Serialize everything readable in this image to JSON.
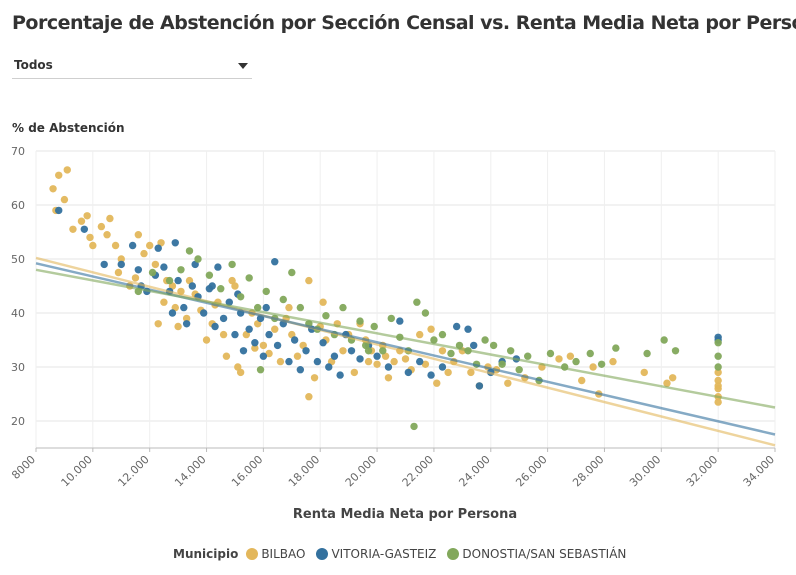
{
  "title": "Porcentaje de Abstención por Sección Censal vs. Renta Media Neta por Persona",
  "filter": {
    "selected": "Todos"
  },
  "legend": {
    "title": "Municipio",
    "items": [
      {
        "label": "BILBAO",
        "color": "#e3b75b"
      },
      {
        "label": "VITORIA-GASTEIZ",
        "color": "#33719e"
      },
      {
        "label": "DONOSTIA/SAN SEBASTIÁN",
        "color": "#82a85b"
      }
    ]
  },
  "chart_data": {
    "type": "scatter",
    "title": "Porcentaje de Abstención por Sección Censal vs. Renta Media Neta por Persona",
    "xlabel": "Renta Media Neta por Persona",
    "ylabel": "% de Abstención",
    "xlim": [
      8000,
      34000
    ],
    "ylim": [
      15,
      70
    ],
    "x_ticks": [
      8000,
      10000,
      12000,
      14000,
      16000,
      18000,
      20000,
      22000,
      24000,
      26000,
      28000,
      30000,
      32000,
      34000
    ],
    "x_tick_labels": [
      "8000",
      "10.000",
      "12.000",
      "14.000",
      "16.000",
      "18.000",
      "20.000",
      "22.000",
      "24.000",
      "26.000",
      "28.000",
      "30.000",
      "32.000",
      "34.000"
    ],
    "y_ticks": [
      20,
      30,
      40,
      50,
      60,
      70
    ],
    "grid": true,
    "legend_position": "bottom",
    "series": [
      {
        "name": "BILBAO",
        "color": "#e3b75b",
        "points": [
          [
            8600,
            63
          ],
          [
            8800,
            65.5
          ],
          [
            9100,
            66.5
          ],
          [
            8700,
            59
          ],
          [
            9000,
            61
          ],
          [
            9300,
            55.5
          ],
          [
            9600,
            57
          ],
          [
            9800,
            58
          ],
          [
            9900,
            54
          ],
          [
            10000,
            52.5
          ],
          [
            10300,
            56
          ],
          [
            10500,
            54.5
          ],
          [
            10600,
            57.5
          ],
          [
            10800,
            52.5
          ],
          [
            11000,
            50
          ],
          [
            10900,
            47.5
          ],
          [
            11300,
            45
          ],
          [
            11500,
            46.5
          ],
          [
            11600,
            54.5
          ],
          [
            11800,
            51
          ],
          [
            12000,
            52.5
          ],
          [
            12200,
            49
          ],
          [
            12400,
            53
          ],
          [
            12600,
            46
          ],
          [
            12800,
            45
          ],
          [
            12500,
            42
          ],
          [
            12900,
            41
          ],
          [
            13100,
            44
          ],
          [
            13300,
            39
          ],
          [
            13400,
            46
          ],
          [
            13600,
            43.5
          ],
          [
            13800,
            40.5
          ],
          [
            14000,
            35
          ],
          [
            14200,
            38
          ],
          [
            14400,
            42
          ],
          [
            14600,
            36
          ],
          [
            14700,
            32
          ],
          [
            14900,
            46
          ],
          [
            15100,
            30
          ],
          [
            15200,
            29
          ],
          [
            15400,
            36
          ],
          [
            15600,
            40
          ],
          [
            15800,
            38
          ],
          [
            16000,
            34
          ],
          [
            16200,
            32.5
          ],
          [
            16400,
            37
          ],
          [
            16600,
            31
          ],
          [
            16800,
            39
          ],
          [
            17000,
            36
          ],
          [
            17200,
            32
          ],
          [
            17400,
            34
          ],
          [
            17600,
            46
          ],
          [
            17800,
            28
          ],
          [
            18000,
            37.5
          ],
          [
            18200,
            35
          ],
          [
            18400,
            31
          ],
          [
            18600,
            38
          ],
          [
            18800,
            33
          ],
          [
            19000,
            36
          ],
          [
            19200,
            29
          ],
          [
            19400,
            38
          ],
          [
            19600,
            35
          ],
          [
            19800,
            33
          ],
          [
            20000,
            30.5
          ],
          [
            20200,
            34
          ],
          [
            20400,
            28
          ],
          [
            20600,
            31
          ],
          [
            20800,
            33
          ],
          [
            21000,
            31.5
          ],
          [
            21200,
            29.5
          ],
          [
            21500,
            36
          ],
          [
            21700,
            30.5
          ],
          [
            21900,
            37
          ],
          [
            22100,
            27
          ],
          [
            22300,
            33
          ],
          [
            22500,
            29
          ],
          [
            22700,
            31
          ],
          [
            23000,
            33
          ],
          [
            23300,
            29
          ],
          [
            23600,
            26.5
          ],
          [
            23900,
            30
          ],
          [
            24200,
            29.5
          ],
          [
            24600,
            27
          ],
          [
            25200,
            28
          ],
          [
            25800,
            30
          ],
          [
            26400,
            31.5
          ],
          [
            26800,
            32
          ],
          [
            27200,
            27.5
          ],
          [
            27600,
            30
          ],
          [
            27800,
            25
          ],
          [
            28300,
            31
          ],
          [
            29400,
            29
          ],
          [
            30200,
            27
          ],
          [
            30400,
            28
          ],
          [
            32000,
            29
          ],
          [
            32000,
            27.5
          ],
          [
            32000,
            26
          ],
          [
            32000,
            24.5
          ],
          [
            32000,
            26.5
          ],
          [
            32000,
            23.5
          ],
          [
            17600,
            24.5
          ],
          [
            12300,
            38
          ],
          [
            13000,
            37.5
          ],
          [
            14300,
            41.5
          ],
          [
            15700,
            33.5
          ],
          [
            16900,
            41
          ],
          [
            18100,
            42
          ],
          [
            19700,
            31
          ],
          [
            20300,
            32
          ],
          [
            15000,
            45
          ]
        ],
        "trendline": [
          [
            8000,
            50.2
          ],
          [
            34000,
            15.5
          ]
        ]
      },
      {
        "name": "VITORIA-GASTEIZ",
        "color": "#33719e",
        "points": [
          [
            8800,
            59
          ],
          [
            9700,
            55.5
          ],
          [
            10400,
            49
          ],
          [
            11000,
            49
          ],
          [
            11400,
            52.5
          ],
          [
            11600,
            48
          ],
          [
            11700,
            45
          ],
          [
            11900,
            44
          ],
          [
            12200,
            47
          ],
          [
            12300,
            52
          ],
          [
            12500,
            48.5
          ],
          [
            12700,
            44
          ],
          [
            12900,
            53
          ],
          [
            13000,
            46
          ],
          [
            13200,
            41
          ],
          [
            13300,
            38
          ],
          [
            13500,
            45
          ],
          [
            13700,
            43
          ],
          [
            13900,
            40
          ],
          [
            14100,
            44.5
          ],
          [
            14300,
            37.5
          ],
          [
            14400,
            48.5
          ],
          [
            14600,
            39
          ],
          [
            14800,
            42
          ],
          [
            15000,
            36
          ],
          [
            15200,
            40
          ],
          [
            15300,
            33
          ],
          [
            15500,
            37
          ],
          [
            15700,
            34.5
          ],
          [
            15900,
            39
          ],
          [
            16000,
            32
          ],
          [
            16200,
            36
          ],
          [
            16400,
            49.5
          ],
          [
            16500,
            34
          ],
          [
            16700,
            38
          ],
          [
            16900,
            31
          ],
          [
            17100,
            35
          ],
          [
            17300,
            29.5
          ],
          [
            17500,
            33
          ],
          [
            17700,
            37
          ],
          [
            17900,
            31
          ],
          [
            18100,
            34.5
          ],
          [
            18300,
            30
          ],
          [
            18500,
            32
          ],
          [
            18700,
            28.5
          ],
          [
            18900,
            36
          ],
          [
            19100,
            33
          ],
          [
            19400,
            31.5
          ],
          [
            19700,
            34
          ],
          [
            20000,
            32
          ],
          [
            20400,
            30
          ],
          [
            20800,
            38.5
          ],
          [
            21100,
            29
          ],
          [
            21500,
            31
          ],
          [
            21900,
            28.5
          ],
          [
            22300,
            30
          ],
          [
            22800,
            37.5
          ],
          [
            23200,
            37
          ],
          [
            23400,
            34
          ],
          [
            23600,
            26.5
          ],
          [
            24000,
            29
          ],
          [
            24400,
            31
          ],
          [
            24900,
            31.5
          ],
          [
            32000,
            35.5
          ],
          [
            32000,
            35
          ],
          [
            13600,
            49
          ],
          [
            14200,
            45
          ],
          [
            15100,
            43.5
          ],
          [
            16100,
            41
          ],
          [
            12800,
            40
          ]
        ],
        "trendline": [
          [
            8000,
            49.2
          ],
          [
            34000,
            17.5
          ]
        ]
      },
      {
        "name": "DONOSTIA/SAN SEBASTIÁN",
        "color": "#82a85b",
        "points": [
          [
            11600,
            44
          ],
          [
            12100,
            47.5
          ],
          [
            12700,
            46
          ],
          [
            13100,
            48
          ],
          [
            13400,
            51.5
          ],
          [
            13700,
            50
          ],
          [
            14100,
            47
          ],
          [
            14500,
            44.5
          ],
          [
            14900,
            49
          ],
          [
            15200,
            43
          ],
          [
            15500,
            46.5
          ],
          [
            15800,
            41
          ],
          [
            16100,
            44
          ],
          [
            16400,
            39
          ],
          [
            16700,
            42.5
          ],
          [
            17000,
            47.5
          ],
          [
            17300,
            41
          ],
          [
            17600,
            38
          ],
          [
            17900,
            37
          ],
          [
            18200,
            39.5
          ],
          [
            18500,
            36
          ],
          [
            18800,
            41
          ],
          [
            19100,
            35
          ],
          [
            19400,
            38.5
          ],
          [
            19600,
            34
          ],
          [
            19900,
            37.5
          ],
          [
            20200,
            33
          ],
          [
            20500,
            39
          ],
          [
            20800,
            35.5
          ],
          [
            21100,
            33
          ],
          [
            21400,
            42
          ],
          [
            21700,
            40
          ],
          [
            22000,
            35
          ],
          [
            22300,
            36
          ],
          [
            22600,
            32.5
          ],
          [
            22900,
            34
          ],
          [
            23200,
            33
          ],
          [
            23500,
            30.5
          ],
          [
            23800,
            35
          ],
          [
            24100,
            34
          ],
          [
            24400,
            30.5
          ],
          [
            24700,
            33
          ],
          [
            25000,
            29.5
          ],
          [
            25300,
            32
          ],
          [
            25700,
            27.5
          ],
          [
            26100,
            32.5
          ],
          [
            26600,
            30
          ],
          [
            27000,
            31
          ],
          [
            27500,
            32.5
          ],
          [
            27900,
            30.5
          ],
          [
            28400,
            33.5
          ],
          [
            29500,
            32.5
          ],
          [
            30100,
            35
          ],
          [
            30500,
            33
          ],
          [
            32000,
            34.5
          ],
          [
            32000,
            32
          ],
          [
            32000,
            30
          ],
          [
            21300,
            19
          ],
          [
            15900,
            29.5
          ],
          [
            19700,
            33
          ]
        ],
        "trendline": [
          [
            8000,
            48
          ],
          [
            34000,
            22.5
          ]
        ]
      }
    ]
  }
}
